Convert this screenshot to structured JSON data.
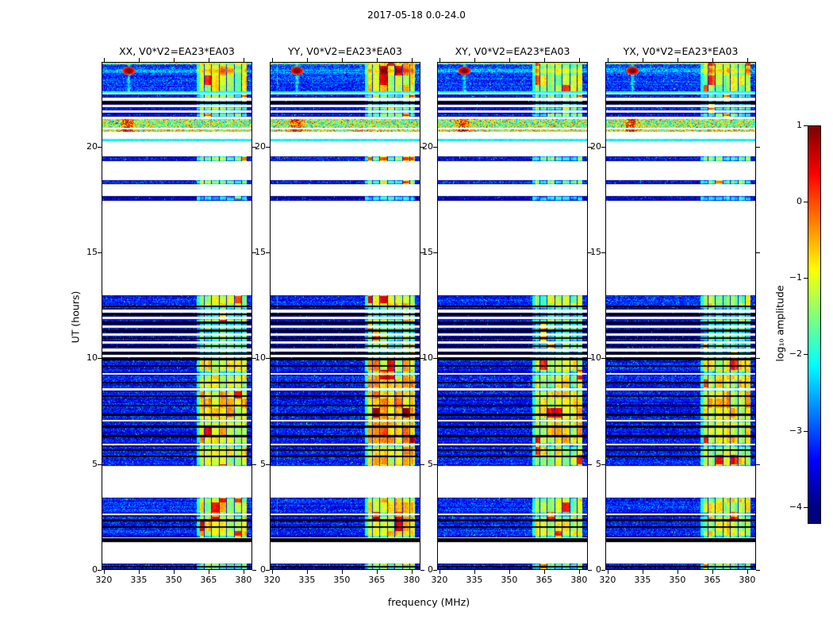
{
  "figure": {
    "title": "2017-05-18 0.0-24.0",
    "xlabel": "frequency (MHz)",
    "ylabel": "UT (hours)",
    "colorbar_label": "log₁₀ amplitude"
  },
  "chart_data": {
    "type": "heatmap",
    "title": "2017-05-18 0.0-24.0",
    "xlabel": "frequency (MHz)",
    "ylabel": "UT (hours)",
    "colormap": "jet",
    "x_range_mhz": [
      319,
      383.8
    ],
    "x_ticks": [
      320,
      335,
      350,
      365,
      380
    ],
    "y_range_hours": [
      0,
      24
    ],
    "y_ticks": [
      0,
      5,
      10,
      15,
      20
    ],
    "colorbar_ticks": [
      1,
      0,
      -1,
      -2,
      -3,
      -4
    ],
    "color_range_log10": [
      -4,
      1
    ],
    "rfi_block_mhz": [
      360,
      381.6
    ],
    "panels": [
      {
        "label": "XX",
        "title": "XX, V0*V2=EA23*EA03",
        "seed": 101,
        "hiAdj": 0
      },
      {
        "label": "YY",
        "title": "YY, V0*V2=EA23*EA03",
        "seed": 202,
        "hiAdj": 0.1
      },
      {
        "label": "XY",
        "title": "XY, V0*V2=EA23*EA03",
        "seed": 303,
        "hiAdj": -0.25
      },
      {
        "label": "YX",
        "title": "YX, V0*V2=EA23*EA03",
        "seed": 404,
        "hiAdj": -0.12
      }
    ],
    "time_bands": [
      {
        "t0": 0.0,
        "t1": 0.28,
        "kind": "noise",
        "base": -3.2,
        "hi": -1.3
      },
      {
        "t0": 1.28,
        "t1": 1.46,
        "kind": "black"
      },
      {
        "t0": 1.52,
        "t1": 2.55,
        "kind": "noise",
        "base": -3.2,
        "hi": -1.0
      },
      {
        "t0": 2.62,
        "t1": 3.38,
        "kind": "noise",
        "base": -3.2,
        "hi": -1.1
      },
      {
        "t0": 4.88,
        "t1": 5.86,
        "kind": "noise",
        "base": -3.25,
        "hi": -1.05
      },
      {
        "t0": 5.93,
        "t1": 7.0,
        "kind": "noise",
        "base": -3.3,
        "hi": -0.85
      },
      {
        "t0": 7.06,
        "t1": 8.48,
        "kind": "noise",
        "base": -3.3,
        "hi": -0.85
      },
      {
        "t0": 8.56,
        "t1": 9.23,
        "kind": "noise",
        "base": -3.25,
        "hi": -1.05
      },
      {
        "t0": 9.31,
        "t1": 10.06,
        "kind": "noise",
        "base": -3.25,
        "hi": -1.05
      },
      {
        "t0": 10.14,
        "t1": 10.32,
        "kind": "noise",
        "base": -3.3,
        "hi": -1.25
      },
      {
        "t0": 10.44,
        "t1": 10.7,
        "kind": "noise",
        "base": -3.3,
        "hi": -1.25
      },
      {
        "t0": 10.81,
        "t1": 11.07,
        "kind": "noise",
        "base": -3.3,
        "hi": -1.25
      },
      {
        "t0": 11.19,
        "t1": 11.45,
        "kind": "noise",
        "base": -3.3,
        "hi": -1.25
      },
      {
        "t0": 11.56,
        "t1": 11.86,
        "kind": "noise",
        "base": -3.3,
        "hi": -1.25
      },
      {
        "t0": 11.98,
        "t1": 12.16,
        "kind": "noise",
        "base": -3.3,
        "hi": -1.25
      },
      {
        "t0": 12.31,
        "t1": 12.99,
        "kind": "noise",
        "base": -3.2,
        "hi": -1.2
      },
      {
        "t0": 17.45,
        "t1": 17.68,
        "kind": "noise",
        "base": -3.6,
        "hi": -2.3
      },
      {
        "t0": 18.24,
        "t1": 18.43,
        "kind": "noise",
        "base": -3.3,
        "hi": -1.6
      },
      {
        "t0": 19.33,
        "t1": 19.56,
        "kind": "noise",
        "base": -3.3,
        "hi": -1.6
      },
      {
        "t0": 20.27,
        "t1": 20.38,
        "kind": "cyan",
        "base": -2.1
      },
      {
        "t0": 20.72,
        "t1": 20.83,
        "kind": "rfi",
        "base": -1.8
      },
      {
        "t0": 20.9,
        "t1": 21.32,
        "kind": "rfi",
        "base": -2.2
      },
      {
        "t0": 21.44,
        "t1": 21.62,
        "kind": "noise",
        "base": -3.2,
        "hi": -1.45
      },
      {
        "t0": 21.74,
        "t1": 21.89,
        "kind": "noise",
        "base": -3.2,
        "hi": -1.45
      },
      {
        "t0": 22.0,
        "t1": 22.19,
        "kind": "noise",
        "base": -3.2,
        "hi": -1.45
      },
      {
        "t0": 22.34,
        "t1": 22.49,
        "kind": "noise",
        "base": -3.2,
        "hi": -1.45
      },
      {
        "t0": 22.56,
        "t1": 24.0,
        "kind": "noise",
        "base": -3.1,
        "hi": -1.2,
        "spot": {
          "t": 23.62,
          "f": 330.5
        }
      }
    ],
    "flagged_lines_hours": [
      0.12,
      2.0,
      2.32,
      5.35,
      5.65,
      6.3,
      6.75,
      7.32,
      7.75,
      8.2,
      8.85,
      9.62,
      9.95,
      10.22,
      10.58,
      10.95,
      11.3,
      11.68,
      12.07,
      12.45,
      22.1
    ]
  }
}
